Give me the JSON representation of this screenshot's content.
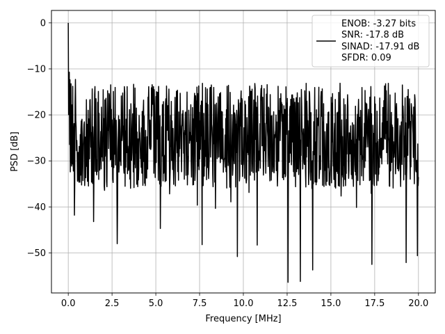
{
  "chart_data": {
    "type": "line",
    "title": "",
    "xlabel": "Frequency [MHz]",
    "ylabel": "PSD [dB]",
    "xlim": [
      -0.96,
      20.96
    ],
    "ylim": [
      -58.7,
      2.7
    ],
    "x_ticks": [
      0.0,
      2.5,
      5.0,
      7.5,
      10.0,
      12.5,
      15.0,
      17.5,
      20.0
    ],
    "x_tick_labels": [
      "0.0",
      "2.5",
      "5.0",
      "7.5",
      "10.0",
      "12.5",
      "15.0",
      "17.5",
      "20.0"
    ],
    "y_ticks": [
      0,
      -10,
      -20,
      -30,
      -40,
      -50
    ],
    "y_tick_labels": [
      "0",
      "−10",
      "−20",
      "−30",
      "−40",
      "−50"
    ],
    "grid": true,
    "legend": {
      "placement": "top-right",
      "lines": [
        "ENOB: -3.27 bits",
        "SNR: -17.8 dB",
        "SINAD: -17.91 dB",
        "SFDR: 0.09"
      ]
    },
    "series": [
      {
        "color": "#000000",
        "x_range": [
          0.0,
          20.0
        ],
        "samples": 1024,
        "peak": {
          "x": 0.0,
          "y": 0.0
        },
        "noise_floor_mean": -22,
        "noise_upper_envelope": -13,
        "noise_lower_typical": -36,
        "notable_dips": [
          {
            "x": 0.35,
            "y": -41.8
          },
          {
            "x": 1.45,
            "y": -43.2
          },
          {
            "x": 2.8,
            "y": -48.0
          },
          {
            "x": 5.25,
            "y": -44.7
          },
          {
            "x": 7.65,
            "y": -48.2
          },
          {
            "x": 9.65,
            "y": -50.8
          },
          {
            "x": 10.8,
            "y": -48.3
          },
          {
            "x": 12.55,
            "y": -56.4
          },
          {
            "x": 13.25,
            "y": -56.2
          },
          {
            "x": 13.95,
            "y": -53.7
          },
          {
            "x": 17.35,
            "y": -52.5
          },
          {
            "x": 19.3,
            "y": -52.1
          },
          {
            "x": 19.95,
            "y": -50.6
          }
        ]
      }
    ]
  }
}
